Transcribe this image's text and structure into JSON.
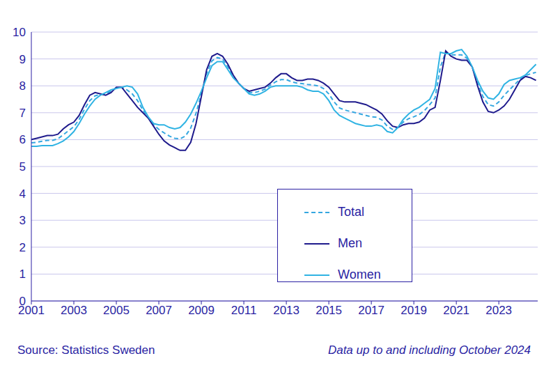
{
  "chart_data": {
    "type": "line",
    "source": "Source: Statistics Sweden",
    "note": "Data up to and including October 2024",
    "x": [
      2001,
      2001.25,
      2001.5,
      2001.75,
      2002,
      2002.25,
      2002.5,
      2002.75,
      2003,
      2003.25,
      2003.5,
      2003.75,
      2004,
      2004.25,
      2004.5,
      2004.75,
      2005,
      2005.25,
      2005.5,
      2005.75,
      2006,
      2006.25,
      2006.5,
      2006.75,
      2007,
      2007.25,
      2007.5,
      2007.75,
      2008,
      2008.25,
      2008.5,
      2008.75,
      2009,
      2009.25,
      2009.5,
      2009.75,
      2010,
      2010.25,
      2010.5,
      2010.75,
      2011,
      2011.25,
      2011.5,
      2011.75,
      2012,
      2012.25,
      2012.5,
      2012.75,
      2013,
      2013.25,
      2013.5,
      2013.75,
      2014,
      2014.25,
      2014.5,
      2014.75,
      2015,
      2015.25,
      2015.5,
      2015.75,
      2016,
      2016.25,
      2016.5,
      2016.75,
      2017,
      2017.25,
      2017.5,
      2017.75,
      2018,
      2018.25,
      2018.5,
      2018.75,
      2019,
      2019.25,
      2019.5,
      2019.75,
      2020,
      2020.25,
      2020.5,
      2020.75,
      2021,
      2021.25,
      2021.5,
      2021.75,
      2022,
      2022.25,
      2022.5,
      2022.75,
      2023,
      2023.25,
      2023.5,
      2023.75,
      2024,
      2024.25,
      2024.5,
      2024.75
    ],
    "series": [
      {
        "name": "Total",
        "color": "#35a7e0",
        "line_style": "dashed",
        "values": [
          5.88,
          5.9,
          5.94,
          5.97,
          5.97,
          6.03,
          6.18,
          6.33,
          6.48,
          6.75,
          7.13,
          7.45,
          7.63,
          7.68,
          7.7,
          7.8,
          7.93,
          7.95,
          7.85,
          7.7,
          7.45,
          7.1,
          6.83,
          6.55,
          6.38,
          6.25,
          6.13,
          6.05,
          6.03,
          6.13,
          6.43,
          6.98,
          7.7,
          8.45,
          8.93,
          9.05,
          9.0,
          8.7,
          8.35,
          8.1,
          7.9,
          7.75,
          7.75,
          7.8,
          7.88,
          8.03,
          8.15,
          8.23,
          8.23,
          8.15,
          8.1,
          8.08,
          8.05,
          8.03,
          8.0,
          7.9,
          7.7,
          7.4,
          7.18,
          7.1,
          7.05,
          7.0,
          6.95,
          6.9,
          6.85,
          6.83,
          6.73,
          6.5,
          6.38,
          6.45,
          6.65,
          6.78,
          6.85,
          6.93,
          7.08,
          7.3,
          7.55,
          8.7,
          9.25,
          9.15,
          9.15,
          9.15,
          9.03,
          8.7,
          8.1,
          7.6,
          7.3,
          7.25,
          7.4,
          7.65,
          7.85,
          8.05,
          8.25,
          8.38,
          8.45,
          8.5
        ]
      },
      {
        "name": "Men",
        "color": "#1e1a8c",
        "line_style": "solid",
        "values": [
          6.0,
          6.05,
          6.1,
          6.15,
          6.15,
          6.2,
          6.4,
          6.55,
          6.65,
          6.9,
          7.3,
          7.65,
          7.75,
          7.7,
          7.65,
          7.75,
          7.95,
          7.95,
          7.7,
          7.45,
          7.2,
          7.0,
          6.8,
          6.5,
          6.2,
          5.95,
          5.8,
          5.7,
          5.6,
          5.6,
          5.9,
          6.6,
          7.6,
          8.6,
          9.1,
          9.2,
          9.1,
          8.8,
          8.4,
          8.1,
          7.9,
          7.8,
          7.85,
          7.9,
          7.95,
          8.1,
          8.3,
          8.45,
          8.45,
          8.3,
          8.2,
          8.2,
          8.25,
          8.25,
          8.2,
          8.1,
          7.95,
          7.7,
          7.45,
          7.4,
          7.4,
          7.4,
          7.35,
          7.3,
          7.2,
          7.1,
          6.95,
          6.7,
          6.5,
          6.45,
          6.55,
          6.6,
          6.6,
          6.65,
          6.8,
          7.1,
          7.2,
          8.2,
          9.3,
          9.1,
          9.0,
          8.95,
          8.95,
          8.7,
          8.0,
          7.4,
          7.05,
          7.0,
          7.1,
          7.25,
          7.5,
          7.85,
          8.2,
          8.35,
          8.3,
          8.2
        ]
      },
      {
        "name": "Women",
        "color": "#2fb3e3",
        "line_style": "solid",
        "values": [
          5.75,
          5.75,
          5.78,
          5.78,
          5.78,
          5.85,
          5.95,
          6.1,
          6.3,
          6.6,
          6.95,
          7.25,
          7.5,
          7.65,
          7.75,
          7.85,
          7.9,
          7.95,
          8.0,
          7.95,
          7.7,
          7.2,
          6.85,
          6.6,
          6.55,
          6.55,
          6.45,
          6.4,
          6.45,
          6.65,
          6.95,
          7.35,
          7.8,
          8.3,
          8.75,
          8.9,
          8.9,
          8.6,
          8.3,
          8.1,
          7.9,
          7.7,
          7.65,
          7.7,
          7.8,
          7.95,
          8.0,
          8.0,
          8.0,
          8.0,
          8.0,
          7.95,
          7.85,
          7.8,
          7.8,
          7.7,
          7.45,
          7.1,
          6.9,
          6.8,
          6.7,
          6.6,
          6.55,
          6.5,
          6.5,
          6.55,
          6.5,
          6.3,
          6.25,
          6.45,
          6.75,
          6.95,
          7.1,
          7.2,
          7.35,
          7.5,
          7.9,
          9.25,
          9.2,
          9.2,
          9.3,
          9.35,
          9.1,
          8.7,
          8.2,
          7.8,
          7.55,
          7.5,
          7.7,
          8.05,
          8.2,
          8.25,
          8.3,
          8.4,
          8.6,
          8.8
        ]
      }
    ],
    "xlim": [
      2001,
      2024.83
    ],
    "xticks": [
      2001,
      2003,
      2005,
      2007,
      2009,
      2011,
      2013,
      2015,
      2017,
      2019,
      2021,
      2023
    ],
    "ylim": [
      0,
      10
    ],
    "yticks": [
      0,
      1,
      2,
      3,
      4,
      5,
      6,
      7,
      8,
      9,
      10
    ],
    "grid": true,
    "legend": "lower center"
  }
}
